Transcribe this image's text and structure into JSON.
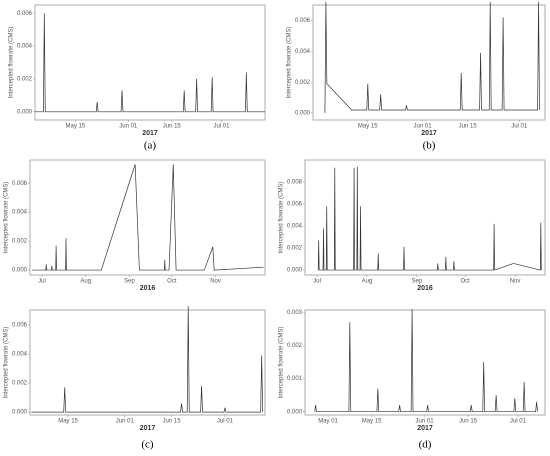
{
  "chart_data": [
    {
      "type": "line",
      "label": "(a)",
      "y_label": "Intercepted flowrate (CMS)",
      "x_label": "2017",
      "color": "#333333",
      "x": [
        122,
        124.7,
        125,
        125.3,
        141.7,
        142,
        142.3,
        149.7,
        150,
        150.3,
        169.7,
        170,
        170.3,
        173.7,
        174,
        174.3,
        178.7,
        179,
        179.3,
        189.7,
        190,
        190.3,
        196
      ],
      "values": [
        0,
        0,
        0.006,
        0,
        0,
        0.0006,
        0,
        0,
        0.0013,
        0,
        0,
        0.0013,
        0,
        0,
        0.002,
        0,
        0,
        0.0021,
        0,
        0,
        0.0024,
        0,
        0
      ],
      "xlim": [
        122,
        196
      ],
      "xticks": [
        {
          "value": 135,
          "label": "May 15"
        },
        {
          "value": 152,
          "label": "Jun 01"
        },
        {
          "value": 166,
          "label": "Jun 15"
        },
        {
          "value": 182,
          "label": "Jul 01"
        }
      ],
      "ylim": [
        -0.0005,
        0.0065
      ],
      "yticks": [
        {
          "value": 0,
          "label": "0.000"
        },
        {
          "value": 0.002,
          "label": "0.002"
        },
        {
          "value": 0.004,
          "label": "0.004"
        },
        {
          "value": 0.006,
          "label": "0.006"
        }
      ]
    },
    {
      "type": "line",
      "label": "(b)",
      "y_label": "Intercepted flowrate (CMS)",
      "x_label": "2017",
      "color": "#333333",
      "x": [
        121.7,
        122,
        122.3,
        130,
        134.7,
        135,
        135.3,
        138.7,
        139,
        139.3,
        146.7,
        147,
        147.3,
        163.7,
        164,
        164.3,
        169.7,
        170,
        170.3,
        172.7,
        173,
        173.3,
        176.7,
        177,
        177.3,
        187.7,
        188,
        188.3
      ],
      "values": [
        0,
        0.0072,
        0.0019,
        0.0002,
        0.0002,
        0.0019,
        0.0002,
        0.0002,
        0.0012,
        0.0002,
        0.0002,
        0.0005,
        0.0002,
        0.0002,
        0.0026,
        0.0002,
        0.0002,
        0.0039,
        0.0002,
        0.0002,
        0.0072,
        0.0002,
        0.0002,
        0.0062,
        0.0002,
        0.0002,
        0.0072,
        0.0002
      ],
      "xlim": [
        118,
        190
      ],
      "xticks": [
        {
          "value": 135,
          "label": "May 15"
        },
        {
          "value": 152,
          "label": "Jun 01"
        },
        {
          "value": 166,
          "label": "Jun 15"
        },
        {
          "value": 182,
          "label": "Jul 01"
        }
      ],
      "ylim": [
        -0.00045,
        0.007
      ],
      "yticks": [
        {
          "value": 0,
          "label": "0.000"
        },
        {
          "value": 0.002,
          "label": "0.002"
        },
        {
          "value": 0.004,
          "label": "0.004"
        },
        {
          "value": 0.006,
          "label": "0.006"
        }
      ]
    },
    {
      "type": "line",
      "y_label": "Intercepted flowrate (CMS)",
      "x_label": "2016",
      "color": "#333333",
      "x": [
        176,
        185.7,
        186,
        186.3,
        189.7,
        190,
        190.3,
        192.7,
        193,
        193.3,
        199.7,
        200,
        200.3,
        225,
        249,
        252,
        269.7,
        270,
        270.3,
        273,
        276,
        278,
        298,
        304,
        305,
        340
      ],
      "values": [
        0,
        0,
        0.0004,
        0,
        0,
        0.0003,
        0,
        0,
        0.0017,
        0,
        0,
        0.0022,
        0,
        0,
        0.0073,
        0,
        0,
        0.0007,
        0,
        0,
        0.0073,
        0,
        0,
        0.0016,
        0,
        0.0002
      ],
      "xlim": [
        174.5,
        341
      ],
      "xticks": [
        {
          "value": 183,
          "label": "Jul"
        },
        {
          "value": 214,
          "label": "Aug"
        },
        {
          "value": 245,
          "label": "Sep"
        },
        {
          "value": 275,
          "label": "Oct"
        },
        {
          "value": 306,
          "label": "Nov"
        }
      ],
      "ylim": [
        -0.00034,
        0.0076
      ],
      "yticks": [
        {
          "value": 0,
          "label": "0.000"
        },
        {
          "value": 0.002,
          "label": "0.002"
        },
        {
          "value": 0.004,
          "label": "0.004"
        },
        {
          "value": 0.006,
          "label": "0.006"
        }
      ]
    },
    {
      "type": "line",
      "y_label": "Intercepted flowrate (CMS)",
      "x_label": "2016",
      "color": "#333333",
      "x": [
        183.7,
        184,
        184.3,
        186.7,
        187,
        187.3,
        188.7,
        189,
        189.3,
        193.7,
        194,
        194.3,
        205.7,
        206,
        206.3,
        207.7,
        208,
        208.3,
        209.7,
        210,
        210.3,
        220.7,
        221,
        221.3,
        236.7,
        237,
        237.3,
        257.7,
        258,
        258.3,
        262.7,
        263,
        263.3,
        267.7,
        268,
        268.3,
        292.7,
        293,
        293.3,
        305,
        321.7,
        322,
        322.3
      ],
      "values": [
        0,
        0.0027,
        0,
        0,
        0.0038,
        0,
        0,
        0.0058,
        0,
        0,
        0.0093,
        0,
        0,
        0.0093,
        0,
        0,
        0.0094,
        0,
        0,
        0.0058,
        0,
        0,
        0.0015,
        0,
        0,
        0.0021,
        0,
        0,
        0.0006,
        0,
        0,
        0.0012,
        0,
        0,
        0.0008,
        0,
        0,
        0.0042,
        0,
        0.0006,
        0,
        0.0043,
        0
      ],
      "xlim": [
        175.5,
        324.6
      ],
      "xticks": [
        {
          "value": 183,
          "label": "Jul"
        },
        {
          "value": 214,
          "label": "Aug"
        },
        {
          "value": 245,
          "label": "Sep"
        },
        {
          "value": 275,
          "label": "Oct"
        },
        {
          "value": 306,
          "label": "Nov"
        }
      ],
      "ylim": [
        -0.00045,
        0.01
      ],
      "yticks": [
        {
          "value": 0,
          "label": "0.000"
        },
        {
          "value": 0.002,
          "label": "0.002"
        },
        {
          "value": 0.004,
          "label": "0.004"
        },
        {
          "value": 0.006,
          "label": "0.006"
        },
        {
          "value": 0.008,
          "label": "0.008"
        }
      ]
    },
    {
      "type": "line",
      "label": "(c)",
      "y_label": "Intercepted flowrate (CMS)",
      "x_label": "2017",
      "color": "#333333",
      "x": [
        124,
        133.7,
        134,
        134.3,
        168.7,
        169,
        169.3,
        170.7,
        171,
        171.3,
        174.7,
        175,
        175.3,
        181.7,
        182,
        182.3,
        192.7,
        193,
        193.3
      ],
      "values": [
        0,
        0,
        0.0017,
        0,
        0,
        0.0006,
        0,
        0,
        0.0073,
        0,
        0,
        0.0018,
        0,
        0,
        0.0003,
        0,
        0,
        0.0039,
        0
      ],
      "xlim": [
        123.6,
        194
      ],
      "xticks": [
        {
          "value": 135,
          "label": "May 15"
        },
        {
          "value": 152,
          "label": "Jun 01"
        },
        {
          "value": 166,
          "label": "Jun 15"
        },
        {
          "value": 182,
          "label": "Jul 01"
        }
      ],
      "ylim": [
        -0.0002,
        0.00703
      ],
      "yticks": [
        {
          "value": 0,
          "label": "0.000"
        },
        {
          "value": 0.002,
          "label": "0.002"
        },
        {
          "value": 0.004,
          "label": "0.004"
        },
        {
          "value": 0.006,
          "label": "0.006"
        }
      ]
    },
    {
      "type": "line",
      "label": "(d)",
      "y_label": "Intercepted flowrate (CMS)",
      "x_label": "2017",
      "color": "#333333",
      "x": [
        116.7,
        117,
        117.3,
        127.7,
        128,
        128.3,
        136.7,
        137,
        137.3,
        143.7,
        144,
        144.3,
        147.7,
        148,
        148.3,
        152.7,
        153,
        153.3,
        160,
        166.7,
        167,
        167.3,
        170.7,
        171,
        171.3,
        174.7,
        175,
        175.3,
        180.7,
        181,
        181.3,
        183.7,
        184,
        184.3,
        187.7,
        188,
        188.3
      ],
      "values": [
        0,
        0.0002,
        0,
        0,
        0.0027,
        0,
        0,
        0.0007,
        0,
        0,
        0.0002,
        0,
        0,
        0.0031,
        0,
        0,
        0.0002,
        0,
        0,
        0,
        0.0002,
        0,
        0,
        0.0015,
        0,
        0,
        0.0005,
        0,
        0,
        0.0004,
        0,
        0,
        0.0009,
        0,
        0,
        0.0003,
        0
      ],
      "xlim": [
        113.6,
        190.7
      ],
      "xticks": [
        {
          "value": 121,
          "label": "May 01"
        },
        {
          "value": 135,
          "label": "May 15"
        },
        {
          "value": 152,
          "label": "Jun 01"
        },
        {
          "value": 166,
          "label": "Jun 15"
        },
        {
          "value": 182,
          "label": "Jul 01"
        }
      ],
      "ylim": [
        -0.0001,
        0.00307
      ],
      "yticks": [
        {
          "value": 0,
          "label": "0.000"
        },
        {
          "value": 0.001,
          "label": "0.001"
        },
        {
          "value": 0.002,
          "label": "0.002"
        },
        {
          "value": 0.003,
          "label": "0.003"
        }
      ]
    }
  ]
}
